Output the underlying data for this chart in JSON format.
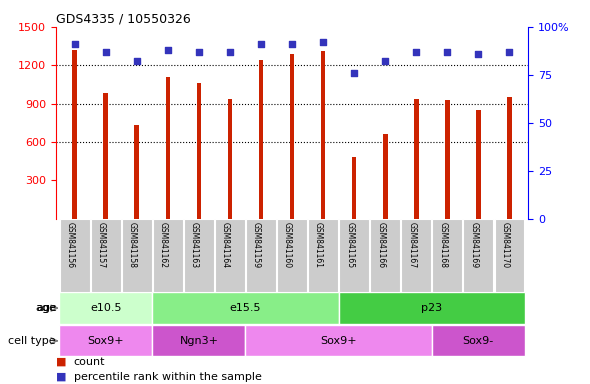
{
  "title": "GDS4335 / 10550326",
  "samples": [
    "GSM841156",
    "GSM841157",
    "GSM841158",
    "GSM841162",
    "GSM841163",
    "GSM841164",
    "GSM841159",
    "GSM841160",
    "GSM841161",
    "GSM841165",
    "GSM841166",
    "GSM841167",
    "GSM841168",
    "GSM841169",
    "GSM841170"
  ],
  "counts": [
    1320,
    980,
    730,
    1110,
    1060,
    940,
    1240,
    1290,
    1310,
    480,
    660,
    940,
    930,
    850,
    950
  ],
  "percentiles": [
    91,
    87,
    82,
    88,
    87,
    87,
    91,
    91,
    92,
    76,
    82,
    87,
    87,
    86,
    87
  ],
  "ylim_left": [
    0,
    1500
  ],
  "ylim_right": [
    0,
    100
  ],
  "yticks_left": [
    300,
    600,
    900,
    1200,
    1500
  ],
  "yticks_right": [
    0,
    25,
    50,
    75,
    100
  ],
  "ytick_labels_right": [
    "0",
    "25",
    "50",
    "75",
    "100%"
  ],
  "bar_color": "#cc2200",
  "dot_color": "#3333bb",
  "age_groups": [
    {
      "label": "e10.5",
      "start": 0,
      "end": 3,
      "color": "#ccffcc"
    },
    {
      "label": "e15.5",
      "start": 3,
      "end": 9,
      "color": "#88ee88"
    },
    {
      "label": "p23",
      "start": 9,
      "end": 15,
      "color": "#44cc44"
    }
  ],
  "cell_type_groups": [
    {
      "label": "Sox9+",
      "start": 0,
      "end": 3,
      "color": "#ee88ee"
    },
    {
      "label": "Ngn3+",
      "start": 3,
      "end": 6,
      "color": "#cc55cc"
    },
    {
      "label": "Sox9+",
      "start": 6,
      "end": 12,
      "color": "#ee88ee"
    },
    {
      "label": "Sox9-",
      "start": 12,
      "end": 15,
      "color": "#cc55cc"
    }
  ],
  "tick_bg_color": "#cccccc",
  "age_label": "age",
  "cell_label": "cell type",
  "legend_count_label": "count",
  "legend_pct_label": "percentile rank within the sample",
  "bar_width": 0.15
}
